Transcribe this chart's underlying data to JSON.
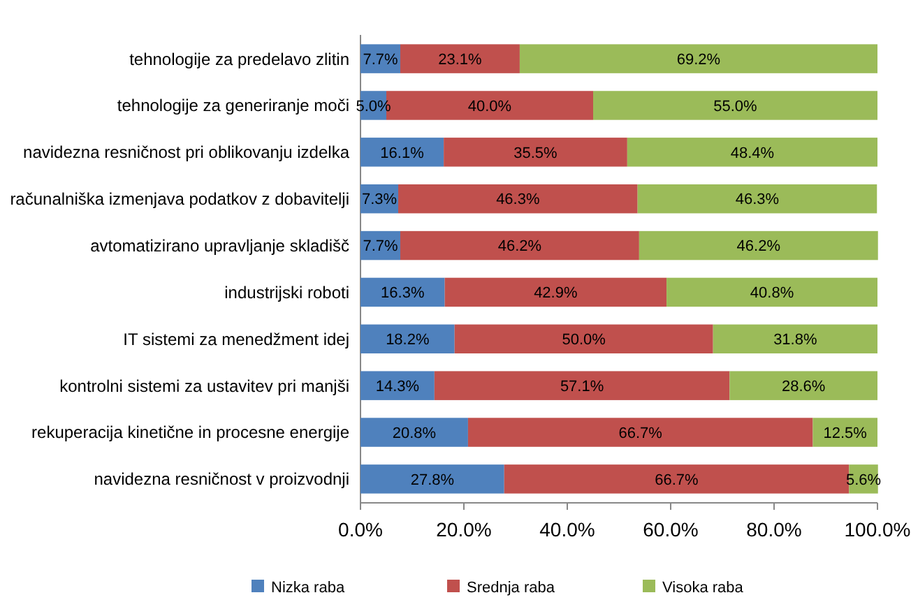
{
  "chart_data": {
    "type": "bar",
    "orientation": "horizontal",
    "stacked": true,
    "legend": "bottom",
    "grid": false,
    "categories": [
      "tehnologije za predelavo zlitin",
      "tehnologije za generiranje moči",
      "navidezna resničnost pri oblikovanju izdelka",
      "računalniška izmenjava podatkov z dobavitelji",
      "avtomatizirano upravljanje skladišč",
      "industrijski roboti",
      "IT sistemi za menedžment idej",
      "kontrolni sistemi za ustavitev pri manjši",
      "rekuperacija kinetične in procesne energije",
      "navidezna resničnost v proizvodnji"
    ],
    "xlim": [
      0,
      100
    ],
    "xticks": [
      {
        "value": 0,
        "label": "0.0%"
      },
      {
        "value": 20,
        "label": "20.0%"
      },
      {
        "value": 40,
        "label": "40.0%"
      },
      {
        "value": 60,
        "label": "60.0%"
      },
      {
        "value": 80,
        "label": "80.0%"
      },
      {
        "value": 100,
        "label": "100.0%"
      }
    ],
    "series": [
      {
        "name": "Nizka raba",
        "color": "#4f81bd",
        "values": [
          7.7,
          5.0,
          16.1,
          7.3,
          7.7,
          16.3,
          18.2,
          14.3,
          20.8,
          27.8
        ],
        "value_labels": [
          "7.7%",
          "5.0%",
          "16.1%",
          "7.3%",
          "7.7%",
          "16.3%",
          "18.2%",
          "14.3%",
          "20.8%",
          "27.8%"
        ]
      },
      {
        "name": "Srednja raba",
        "color": "#c0504d",
        "values": [
          23.1,
          40.0,
          35.5,
          46.3,
          46.2,
          42.9,
          50.0,
          57.1,
          66.7,
          66.7
        ],
        "value_labels": [
          "23.1%",
          "40.0%",
          "35.5%",
          "46.3%",
          "46.2%",
          "42.9%",
          "50.0%",
          "57.1%",
          "66.7%",
          "66.7%"
        ]
      },
      {
        "name": "Visoka raba",
        "color": "#9bbb59",
        "values": [
          69.2,
          55.0,
          48.4,
          46.3,
          46.2,
          40.8,
          31.8,
          28.6,
          12.5,
          5.6
        ],
        "value_labels": [
          "69.2%",
          "55.0%",
          "48.4%",
          "46.3%",
          "46.2%",
          "40.8%",
          "31.8%",
          "28.6%",
          "12.5%",
          "5.6%"
        ]
      }
    ]
  }
}
